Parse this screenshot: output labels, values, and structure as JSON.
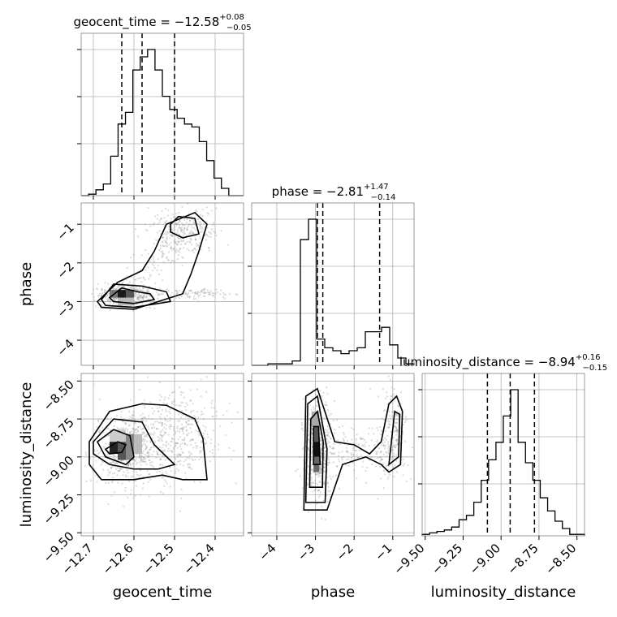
{
  "chart_data": {
    "type": "corner",
    "parameters": [
      "geocent_time",
      "phase",
      "luminosity_distance"
    ],
    "titles": [
      {
        "param": "geocent_time",
        "prefix": "geocent_time = ",
        "median": "−12.58",
        "plus": "+0.08",
        "minus": "−0.05"
      },
      {
        "param": "phase",
        "prefix": "phase = ",
        "median": "−2.81",
        "plus": "+1.47",
        "minus": "−0.14"
      },
      {
        "param": "luminosity_distance",
        "prefix": "luminosity_distance = ",
        "median": "−8.94",
        "plus": "+0.16",
        "minus": "−0.15"
      }
    ],
    "axis_labels": {
      "x": [
        "geocent_time",
        "phase",
        "luminosity_distance"
      ],
      "y": [
        "phase",
        "luminosity_distance"
      ]
    },
    "ranges": {
      "geocent_time": [
        -12.73,
        -12.33
      ],
      "phase": [
        -4.65,
        -0.45
      ],
      "luminosity_distance": [
        -9.52,
        -8.45
      ]
    },
    "ticks": {
      "geocent_time": {
        "values": [
          -12.7,
          -12.6,
          -12.5,
          -12.4
        ],
        "labels": [
          "−12.7",
          "−12.6",
          "−12.5",
          "−12.4"
        ]
      },
      "phase": {
        "values": [
          -4,
          -3,
          -2,
          -1
        ],
        "labels": [
          "−4",
          "−3",
          "−2",
          "−1"
        ]
      },
      "luminosity_distance": {
        "values": [
          -9.5,
          -9.25,
          -9.0,
          -8.75,
          -8.5
        ],
        "labels": [
          "−9.50",
          "−9.25",
          "−9.00",
          "−8.75",
          "−8.50"
        ]
      }
    },
    "quantiles": {
      "geocent_time": [
        -12.63,
        -12.58,
        -12.5
      ],
      "phase": [
        -2.95,
        -2.81,
        -1.34
      ],
      "luminosity_distance": [
        -9.09,
        -8.94,
        -8.78
      ]
    },
    "histograms": {
      "geocent_time": [
        0.0,
        0.01,
        0.04,
        0.08,
        0.27,
        0.49,
        0.57,
        0.86,
        0.95,
        1.0,
        0.86,
        0.68,
        0.59,
        0.53,
        0.49,
        0.47,
        0.37,
        0.24,
        0.12,
        0.05,
        0.0,
        0.0
      ],
      "phase": [
        0.0,
        0.0,
        0.01,
        0.01,
        0.01,
        0.03,
        0.86,
        1.0,
        0.18,
        0.12,
        0.1,
        0.08,
        0.1,
        0.12,
        0.23,
        0.23,
        0.26,
        0.14,
        0.05,
        0.01
      ],
      "luminosity_distance": [
        0.01,
        0.02,
        0.03,
        0.04,
        0.06,
        0.11,
        0.14,
        0.23,
        0.38,
        0.52,
        0.64,
        0.82,
        1.0,
        0.64,
        0.5,
        0.38,
        0.26,
        0.17,
        0.1,
        0.05,
        0.01,
        0.01
      ]
    },
    "grid": true,
    "density_peaks": {
      "geocent_time_vs_phase": {
        "x": -12.62,
        "y": -2.8
      },
      "geocent_time_vs_luminosity_distance": {
        "x": -12.64,
        "y": -8.94
      },
      "phase_vs_luminosity_distance": {
        "x": -2.98,
        "y": -8.95
      }
    }
  }
}
